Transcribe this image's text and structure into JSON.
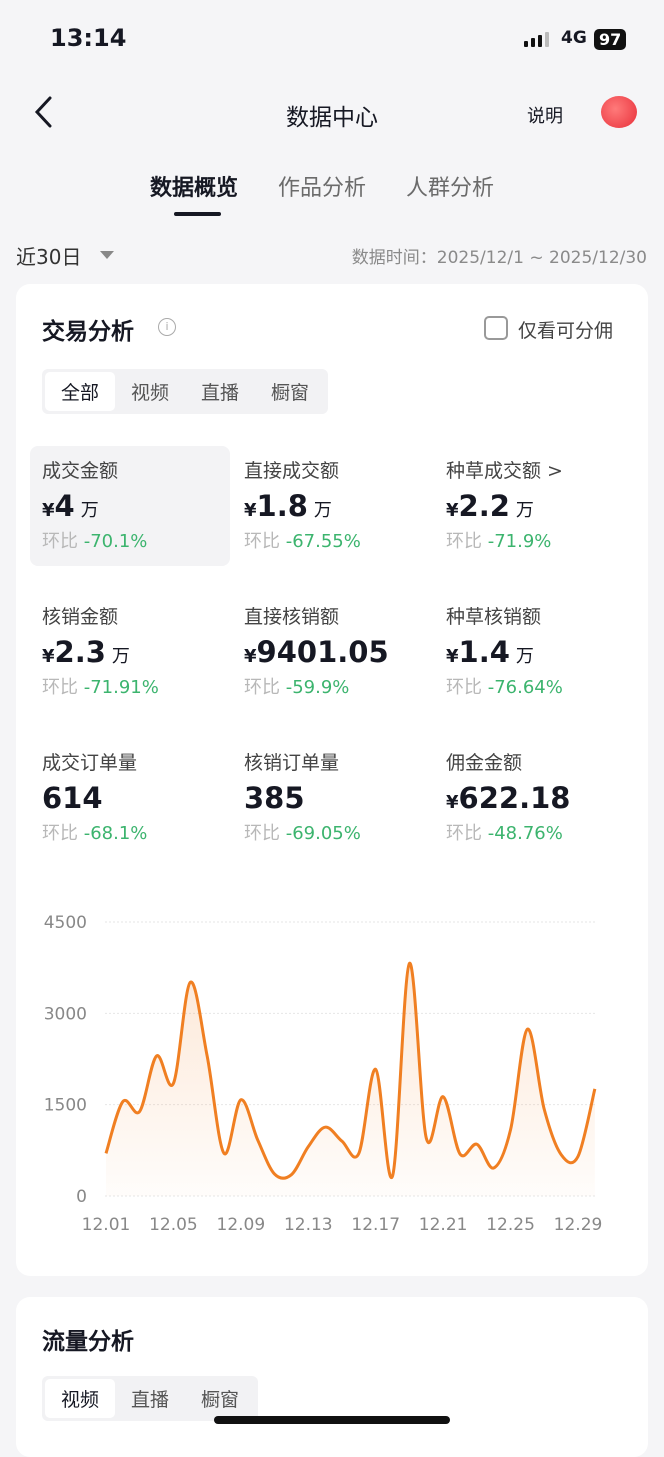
{
  "status": {
    "time": "13:14",
    "network": "4G",
    "battery": "97"
  },
  "header": {
    "title": "数据中心",
    "help": "说明"
  },
  "tabs": [
    {
      "label": "数据概览",
      "active": true
    },
    {
      "label": "作品分析"
    },
    {
      "label": "人群分析"
    }
  ],
  "filter": {
    "range": "近30日",
    "data_time": "数据时间：2025/12/1 ~ 2025/12/30"
  },
  "trade": {
    "title": "交易分析",
    "only_commission": "仅看可分佣",
    "segments": [
      "全部",
      "视频",
      "直播",
      "橱窗"
    ],
    "metrics": [
      {
        "label": "成交金额",
        "currency": "¥",
        "value": "4",
        "unit": "万",
        "change_label": "环比",
        "change": "-70.1%"
      },
      {
        "label": "直接成交额",
        "currency": "¥",
        "value": "1.8",
        "unit": "万",
        "change_label": "环比",
        "change": "-67.55%"
      },
      {
        "label": "种草成交额 >",
        "currency": "¥",
        "value": "2.2",
        "unit": "万",
        "change_label": "环比",
        "change": "-71.9%"
      },
      {
        "label": "核销金额",
        "currency": "¥",
        "value": "2.3",
        "unit": "万",
        "change_label": "环比",
        "change": "-71.91%"
      },
      {
        "label": "直接核销额",
        "currency": "¥",
        "value": "9401.05",
        "unit": "",
        "change_label": "环比",
        "change": "-59.9%"
      },
      {
        "label": "种草核销额",
        "currency": "¥",
        "value": "1.4",
        "unit": "万",
        "change_label": "环比",
        "change": "-76.64%"
      },
      {
        "label": "成交订单量",
        "currency": "",
        "value": "614",
        "unit": "",
        "change_label": "环比",
        "change": "-68.1%"
      },
      {
        "label": "核销订单量",
        "currency": "",
        "value": "385",
        "unit": "",
        "change_label": "环比",
        "change": "-69.05%"
      },
      {
        "label": "佣金金额",
        "currency": "¥",
        "value": "622.18",
        "unit": "",
        "change_label": "环比",
        "change": "-48.76%"
      }
    ]
  },
  "chart_data": {
    "type": "area",
    "ylim": [
      0,
      4500
    ],
    "yticks": [
      "0",
      "1500",
      "3000",
      "4500"
    ],
    "xticks": [
      "12.01",
      "12.05",
      "12.09",
      "12.13",
      "12.17",
      "12.21",
      "12.25",
      "12.29"
    ],
    "x": [
      "12.01",
      "12.02",
      "12.03",
      "12.04",
      "12.05",
      "12.06",
      "12.07",
      "12.08",
      "12.09",
      "12.10",
      "12.11",
      "12.12",
      "12.13",
      "12.14",
      "12.15",
      "12.16",
      "12.17",
      "12.18",
      "12.19",
      "12.20",
      "12.21",
      "12.22",
      "12.23",
      "12.24",
      "12.25",
      "12.26",
      "12.27",
      "12.28",
      "12.29",
      "12.30"
    ],
    "values": [
      700,
      1550,
      1390,
      2300,
      1850,
      3510,
      2300,
      700,
      1580,
      920,
      360,
      350,
      810,
      1130,
      900,
      700,
      2080,
      330,
      3820,
      950,
      1630,
      690,
      850,
      460,
      1090,
      2740,
      1420,
      680,
      650,
      1760
    ],
    "grid": true,
    "color": "#f07f22"
  },
  "traffic": {
    "title": "流量分析",
    "segments": [
      "视频",
      "直播",
      "橱窗"
    ]
  }
}
